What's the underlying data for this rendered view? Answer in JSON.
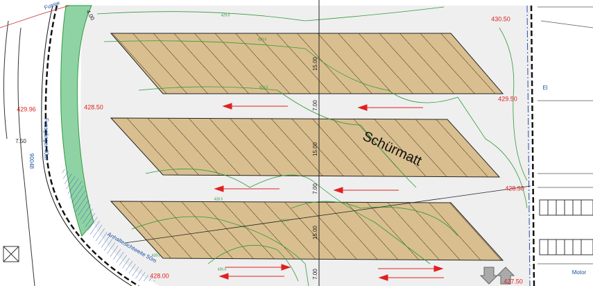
{
  "map": {
    "place_name": "Schürmatt",
    "dimensions": [
      "15.00",
      "15.00",
      "15.00",
      "7.00",
      "7.00",
      "7.00",
      "4.00",
      "7.50"
    ],
    "elevations": [
      "430.50",
      "429.50",
      "428.50",
      "429.96",
      "428.50",
      "428.00",
      "427.50"
    ],
    "notes": [
      "Fussw",
      "Fussgänger 40m",
      "90048",
      "Anhaltesichtweite 50m",
      "El",
      "Motor"
    ],
    "contour_labels": [
      "429.0",
      "429.5",
      "429.0",
      "428.5",
      "427.5",
      "428.0",
      "426.5"
    ]
  }
}
